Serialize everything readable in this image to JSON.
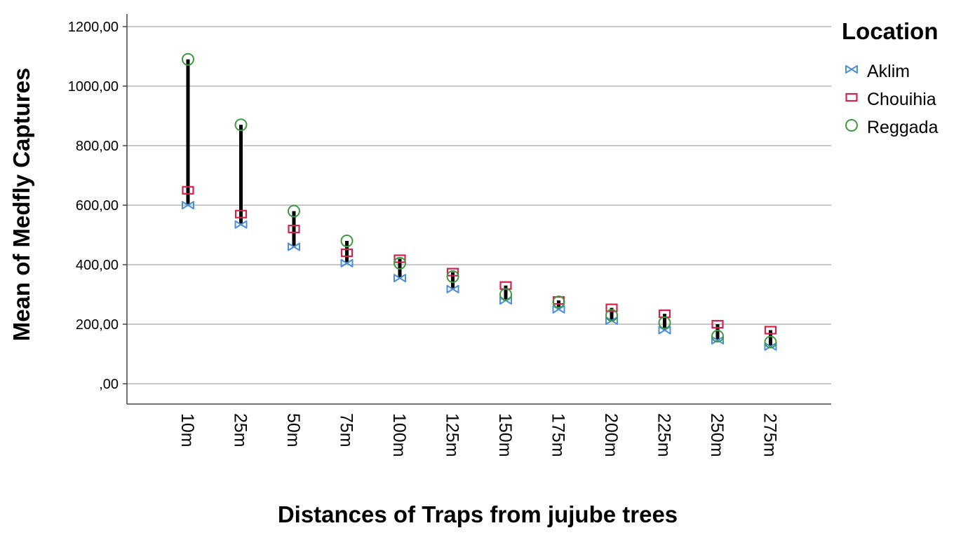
{
  "chart_data": {
    "type": "scatter",
    "subtype": "high-low drop-line",
    "xlabel": "Distances of Traps from jujube trees",
    "ylabel": "Mean of Medfly Captures",
    "ylim": [
      0,
      1200
    ],
    "y_ticks": [
      "1200,00",
      "1000,00",
      "800,00",
      "600,00",
      "400,00",
      "200,00",
      ",00"
    ],
    "y_tick_values": [
      1200,
      1000,
      800,
      600,
      400,
      200,
      0
    ],
    "grid": true,
    "categories": [
      "10m",
      "25m",
      "50m",
      "75m",
      "100m",
      "125m",
      "150m",
      "175m",
      "200m",
      "225m",
      "250m",
      "275m"
    ],
    "legend": {
      "title": "Location",
      "position": "right"
    },
    "series": [
      {
        "name": "Aklim",
        "marker": "bowtie",
        "color": "#4a8fd9",
        "values": [
          600,
          535,
          460,
          405,
          355,
          318,
          280,
          250,
          212,
          180,
          146,
          125
        ]
      },
      {
        "name": "Chouihia",
        "marker": "square",
        "color": "#d4224c",
        "values": [
          650,
          570,
          520,
          440,
          420,
          375,
          330,
          280,
          255,
          235,
          200,
          180
        ]
      },
      {
        "name": "Reggada",
        "marker": "circle",
        "color": "#3c9a3c",
        "values": [
          1090,
          870,
          580,
          480,
          405,
          360,
          300,
          275,
          230,
          205,
          160,
          140
        ]
      }
    ]
  }
}
